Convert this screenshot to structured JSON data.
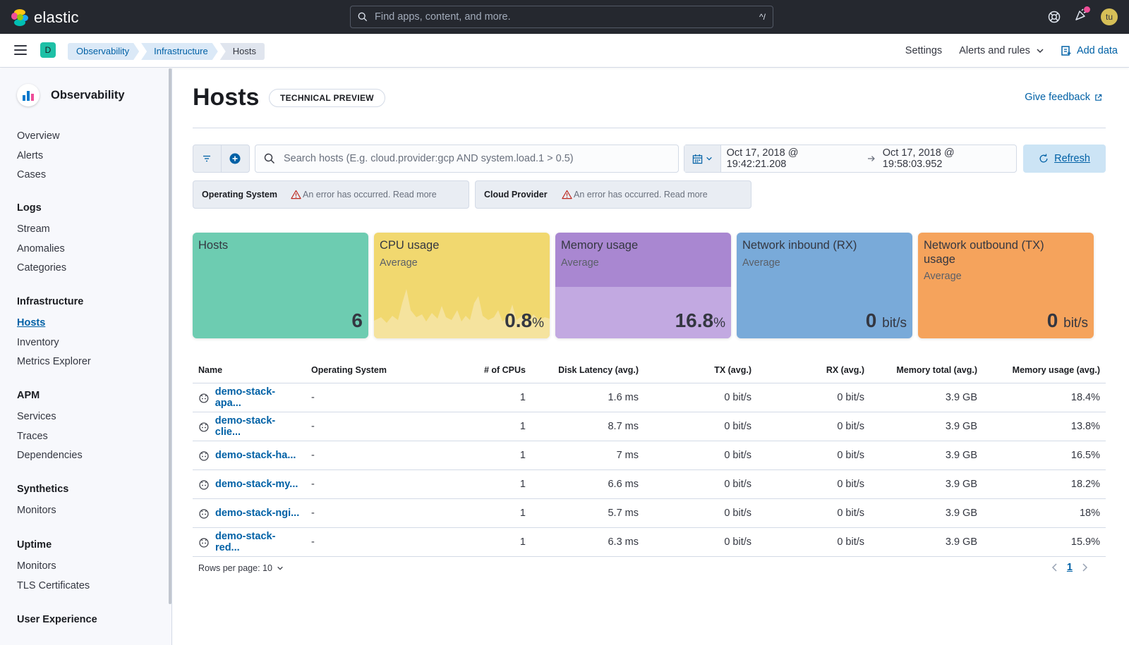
{
  "header": {
    "brand": "elastic",
    "search_placeholder": "Find apps, content, and more.",
    "search_shortcut": "^/",
    "avatar_initials": "tu"
  },
  "subbar": {
    "space_letter": "D",
    "breadcrumbs": [
      "Observability",
      "Infrastructure",
      "Hosts"
    ],
    "settings": "Settings",
    "alerts": "Alerts and rules",
    "add_data": "Add data"
  },
  "sidebar": {
    "title": "Observability",
    "sections": [
      {
        "head": "",
        "items": [
          "Overview",
          "Alerts",
          "Cases"
        ]
      },
      {
        "head": "Logs",
        "items": [
          "Stream",
          "Anomalies",
          "Categories"
        ]
      },
      {
        "head": "Infrastructure",
        "items": [
          "Hosts",
          "Inventory",
          "Metrics Explorer"
        ]
      },
      {
        "head": "APM",
        "items": [
          "Services",
          "Traces",
          "Dependencies"
        ]
      },
      {
        "head": "Synthetics",
        "items": [
          "Monitors"
        ]
      },
      {
        "head": "Uptime",
        "items": [
          "Monitors",
          "TLS Certificates"
        ]
      },
      {
        "head": "User Experience",
        "items": []
      }
    ],
    "active_item": "Hosts"
  },
  "page": {
    "title": "Hosts",
    "badge": "TECHNICAL PREVIEW",
    "feedback": "Give feedback"
  },
  "query": {
    "search_placeholder": "Search hosts (E.g. cloud.provider:gcp AND system.load.1 > 0.5)",
    "date_start": "Oct 17, 2018 @ 19:42:21.208",
    "date_end": "Oct 17, 2018 @ 19:58:03.952",
    "refresh": "Refresh"
  },
  "controls": [
    {
      "label": "Operating System",
      "error": "An error has occurred. Read more"
    },
    {
      "label": "Cloud Provider",
      "error": "An error has occurred. Read more"
    }
  ],
  "kpis": {
    "hosts": {
      "title": "Hosts",
      "value": "6",
      "color": "#6dccb1"
    },
    "cpu": {
      "title": "CPU usage",
      "sub": "Average",
      "value": "0.8",
      "unit": "%",
      "color": "#f1d86f"
    },
    "memory": {
      "title": "Memory usage",
      "sub": "Average",
      "value": "16.8",
      "unit": "%",
      "color": "#a987d1",
      "level": 0.168
    },
    "rx": {
      "title": "Network inbound (RX)",
      "sub": "Average",
      "value": "0",
      "unit": "bit/s",
      "color": "#79aad9"
    },
    "tx": {
      "title": "Network outbound (TX) usage",
      "sub": "Average",
      "value": "0",
      "unit": "bit/s",
      "color": "#f5a35c"
    }
  },
  "table": {
    "columns": [
      "Name",
      "Operating System",
      "# of CPUs",
      "Disk Latency (avg.)",
      "TX (avg.)",
      "RX (avg.)",
      "Memory total (avg.)",
      "Memory usage (avg.)"
    ],
    "rows": [
      [
        "demo-stack-apa...",
        "-",
        "1",
        "1.6 ms",
        "0 bit/s",
        "0 bit/s",
        "3.9 GB",
        "18.4%"
      ],
      [
        "demo-stack-clie...",
        "-",
        "1",
        "8.7 ms",
        "0 bit/s",
        "0 bit/s",
        "3.9 GB",
        "13.8%"
      ],
      [
        "demo-stack-ha...",
        "-",
        "1",
        "7 ms",
        "0 bit/s",
        "0 bit/s",
        "3.9 GB",
        "16.5%"
      ],
      [
        "demo-stack-my...",
        "-",
        "1",
        "6.6 ms",
        "0 bit/s",
        "0 bit/s",
        "3.9 GB",
        "18.2%"
      ],
      [
        "demo-stack-ngi...",
        "-",
        "1",
        "5.7 ms",
        "0 bit/s",
        "0 bit/s",
        "3.9 GB",
        "18%"
      ],
      [
        "demo-stack-red...",
        "-",
        "1",
        "6.3 ms",
        "0 bit/s",
        "0 bit/s",
        "3.9 GB",
        "15.9%"
      ]
    ]
  },
  "pagination": {
    "rows_per_page": "Rows per page: 10",
    "current_page": "1"
  }
}
